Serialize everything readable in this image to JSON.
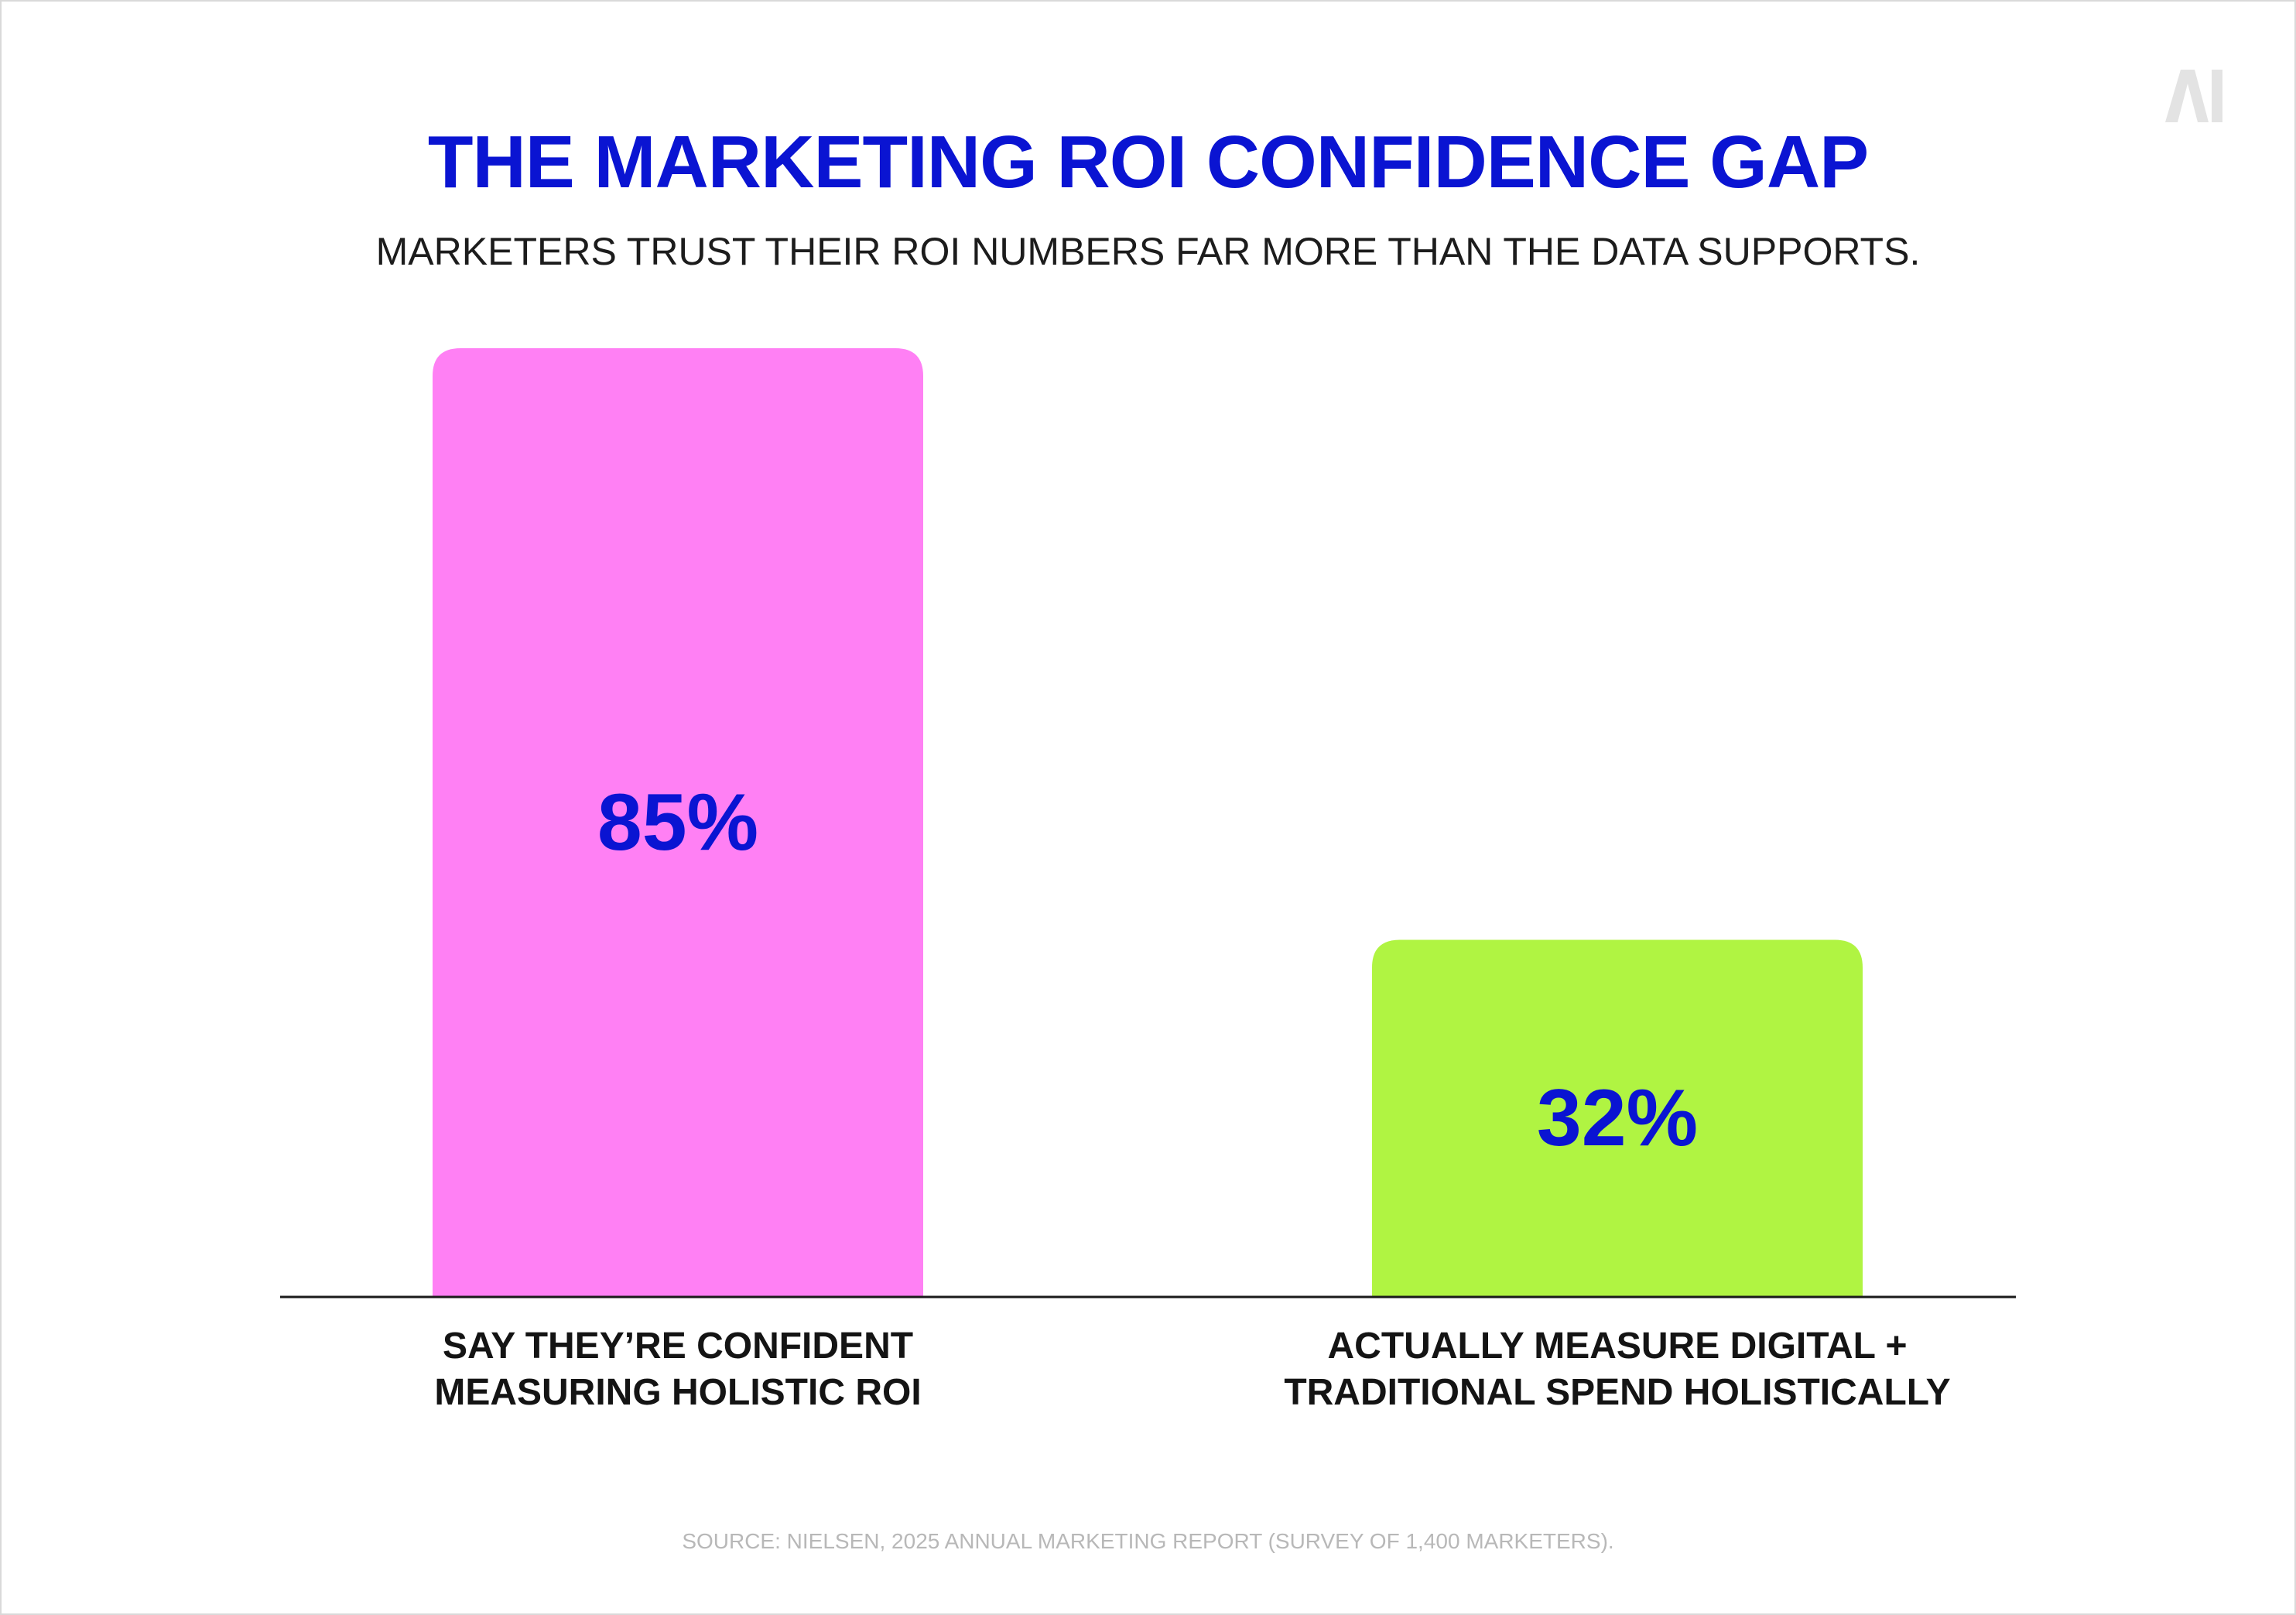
{
  "header": {
    "title": "THE MARKETING ROI CONFIDENCE GAP",
    "subtitle": "MARKETERS TRUST THEIR ROI NUMBERS FAR MORE THAN THE DATA SUPPORTS."
  },
  "logo": {
    "icon": "ai-logo-icon",
    "text": "AI",
    "color": "#e3e3e3"
  },
  "chart_data": {
    "type": "bar",
    "categories": [
      [
        "SAY THEY’RE CONFIDENT",
        "MEASURING HOLISTIC ROI"
      ],
      [
        "ACTUALLY MEASURE DIGITAL +",
        "TRADITIONAL SPEND HOLISTICALLY"
      ]
    ],
    "values": [
      85,
      32
    ],
    "value_labels": [
      "85%",
      "32%"
    ],
    "colors": [
      "#ff80f4",
      "#b0f442"
    ],
    "value_label_color": "#0a14d2",
    "ylim": [
      0,
      85
    ],
    "grid": false,
    "legend": "none"
  },
  "footer": {
    "source": "SOURCE: NIELSEN, 2025 ANNUAL MARKETING REPORT (SURVEY OF 1,400 MARKETERS)."
  }
}
